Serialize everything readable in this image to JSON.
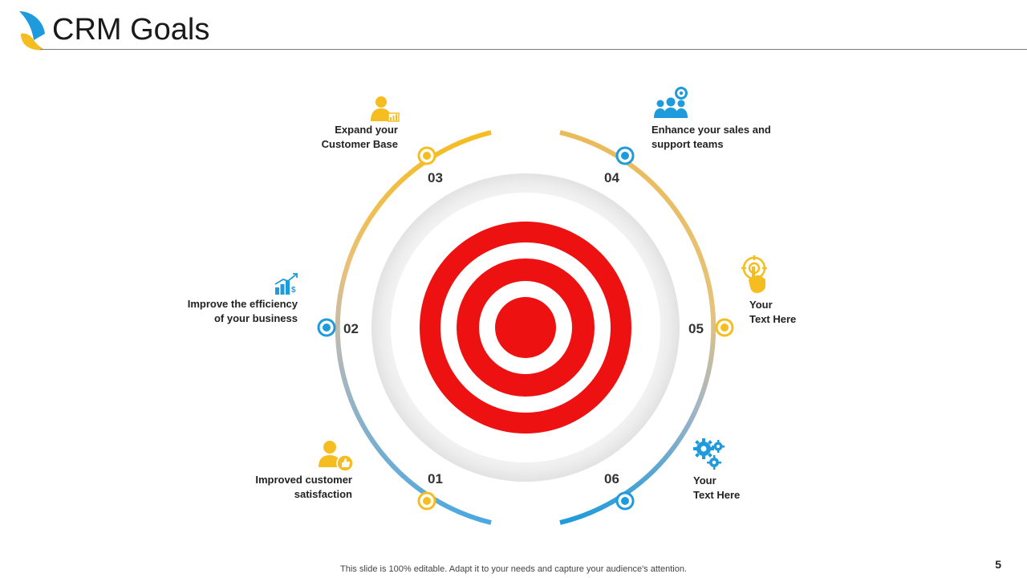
{
  "slide": {
    "title": "CRM Goals",
    "footer": "This slide is 100% editable. Adapt it to your needs and capture your audience's attention.",
    "page_number": "5"
  },
  "colors": {
    "yellow": "#F5BD1F",
    "blue": "#1E9BDC",
    "red": "#EE1111",
    "ring_gray": "#EFEFEF"
  },
  "goals": [
    {
      "number": "01",
      "label": "Improved customer\nsatisfaction",
      "icon": "customer-thumbs-up-icon"
    },
    {
      "number": "02",
      "label": "Improve the efficiency\nof your business",
      "icon": "growth-chart-icon"
    },
    {
      "number": "03",
      "label": "Expand your\nCustomer Base",
      "icon": "person-chart-icon"
    },
    {
      "number": "04",
      "label": "Enhance your sales and\nsupport teams",
      "icon": "team-gear-icon"
    },
    {
      "number": "05",
      "label": "Your\nText Here",
      "icon": "target-click-icon"
    },
    {
      "number": "06",
      "label": "Your\nText Here",
      "icon": "gears-icon"
    }
  ]
}
